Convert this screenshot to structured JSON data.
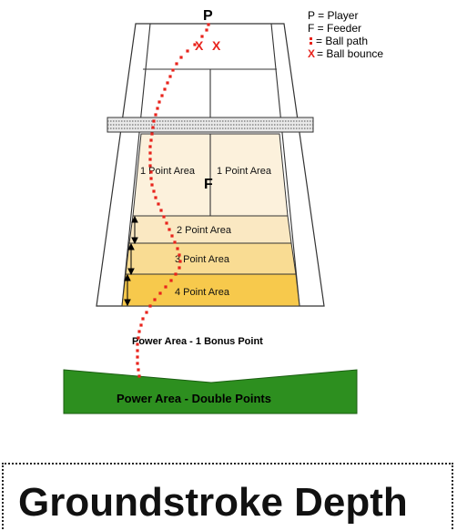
{
  "legend": {
    "player": "P = Player",
    "feeder": "F = Feeder",
    "ball_path": "= Ball path",
    "ball_bounce": "= Ball bounce",
    "bounce_symbol": "X",
    "path_symbol": "•"
  },
  "markers": {
    "player": "P",
    "feeder": "F",
    "bounce_a": "X",
    "bounce_b": "X"
  },
  "zones": {
    "one_point_left": "1 Point Area",
    "one_point_right": "1 Point Area",
    "two_point": "2 Point Area",
    "three_point": "3 Point Area",
    "four_point": "4 Point Area"
  },
  "power": {
    "bonus_label": "Power Area - 1 Bonus Point",
    "double_label": "Power Area - Double Points"
  },
  "title": "Groundstroke Depth",
  "colors": {
    "one_point_fill": "#fcf1dc",
    "two_point_fill": "#fae8c2",
    "three_point_fill": "#f9dc93",
    "four_point_fill": "#f7c94c",
    "power_band": "#2d8f1f",
    "ball_path": "#e8231c",
    "court_line": "#333333"
  }
}
